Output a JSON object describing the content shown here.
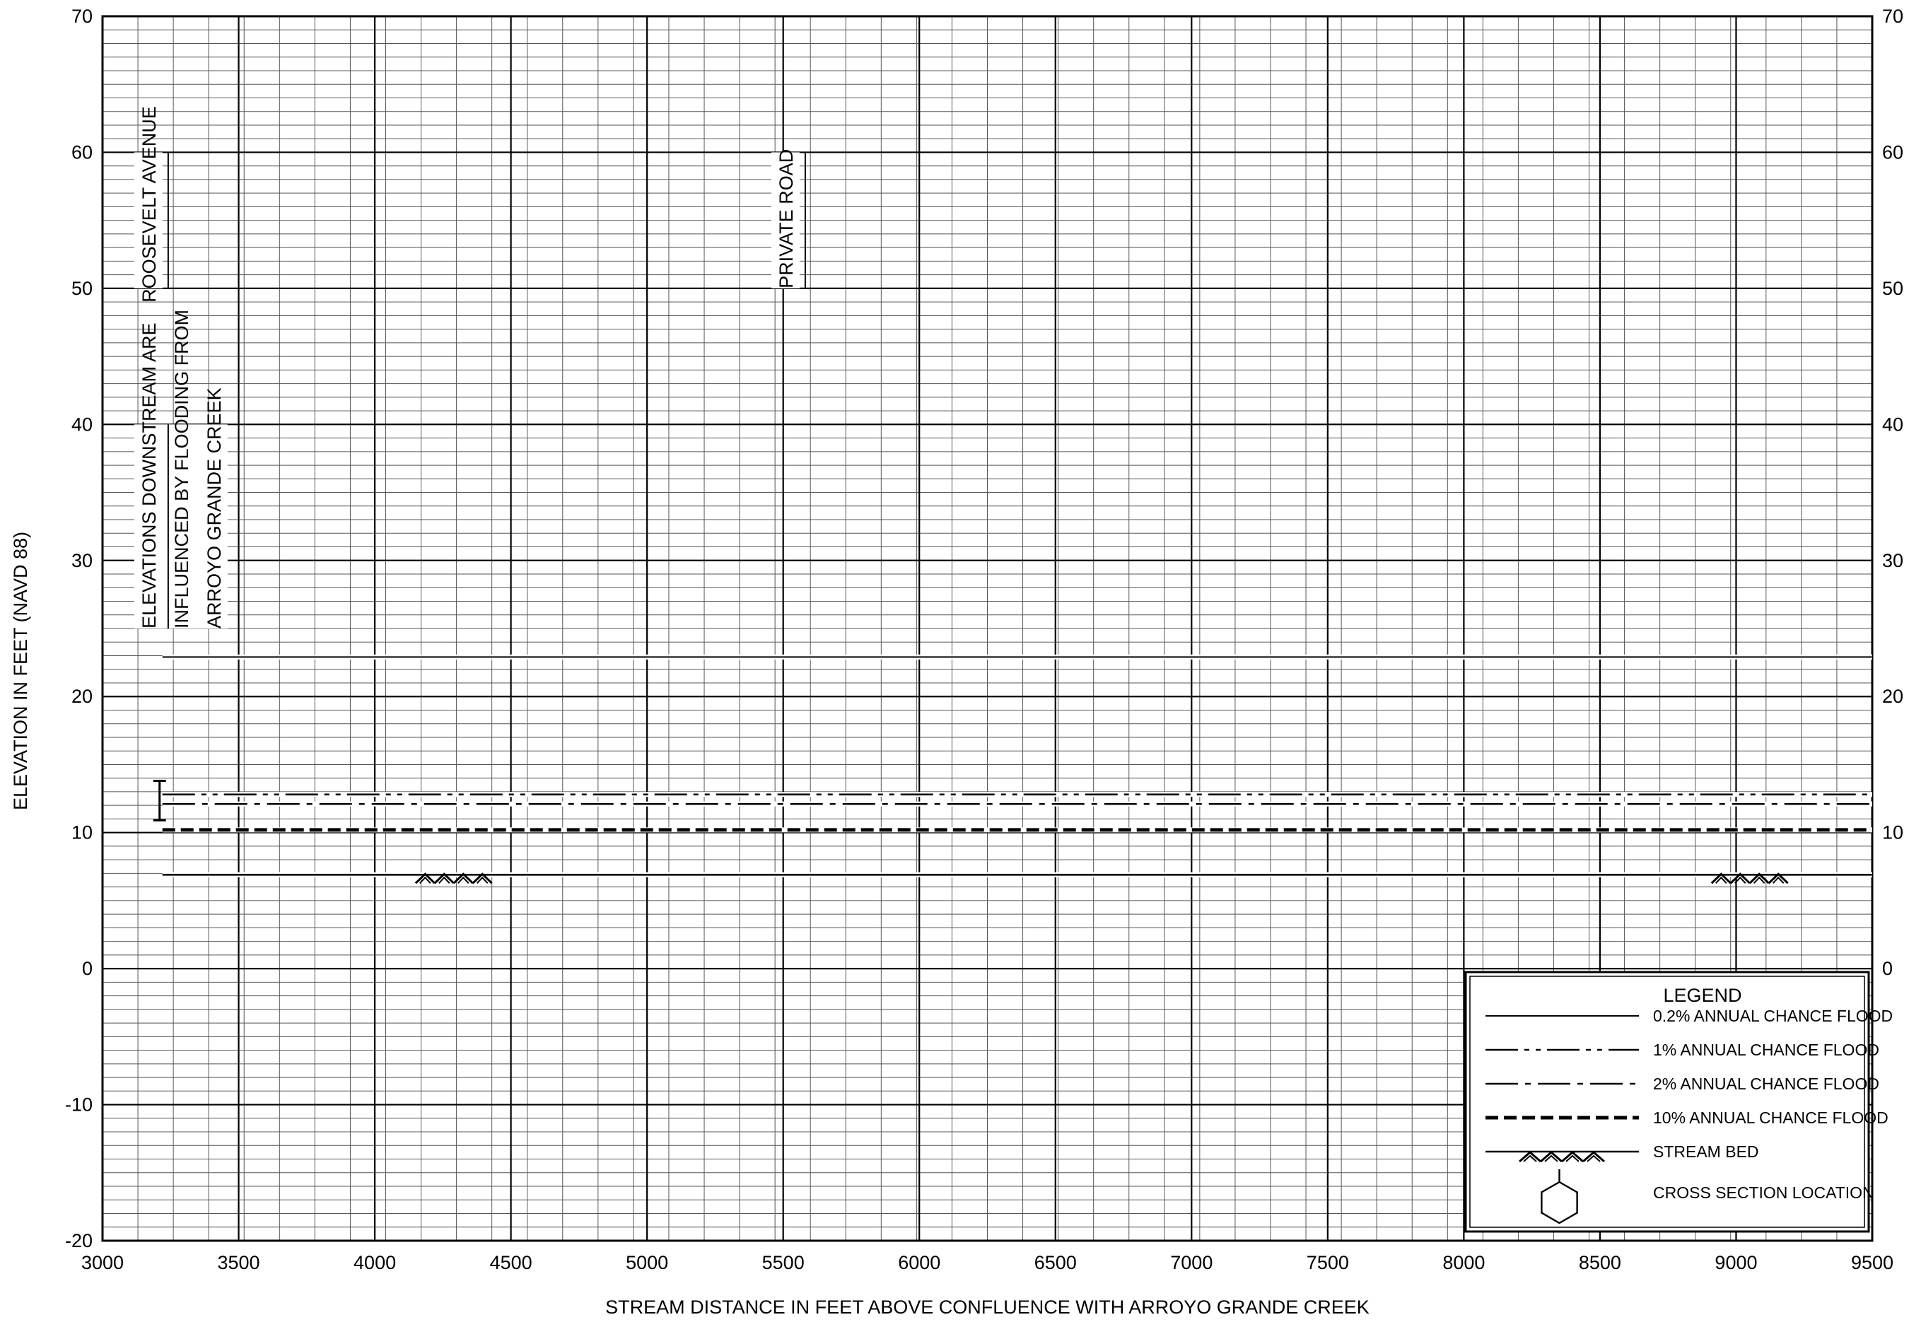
{
  "chart_data": {
    "type": "line",
    "xlabel": "STREAM DISTANCE IN FEET ABOVE CONFLUENCE WITH ARROYO GRANDE CREEK",
    "ylabel": "ELEVATION IN FEET (NAVD 88)",
    "xlim": [
      3000,
      9500
    ],
    "ylim": [
      -20,
      70
    ],
    "x_ticks": [
      3000,
      3500,
      4000,
      4500,
      5000,
      5500,
      6000,
      6500,
      7000,
      7500,
      8000,
      8500,
      9000,
      9500
    ],
    "y_ticks": [
      -20,
      -10,
      0,
      10,
      20,
      30,
      40,
      50,
      60,
      70
    ],
    "y_ticks_right": [
      "",
      "",
      "0",
      "10",
      "20",
      "30",
      "40",
      "50",
      "60",
      "70"
    ],
    "grid": true,
    "series": [
      {
        "name": "0.2% ANNUAL CHANCE FLOOD",
        "style": "solid-thin",
        "x": [
          3220,
          9500
        ],
        "y": [
          22.9,
          22.9
        ]
      },
      {
        "name": "1% ANNUAL CHANCE FLOOD",
        "style": "dash-dot-dot",
        "x": [
          3220,
          9500
        ],
        "y": [
          12.8,
          12.8
        ]
      },
      {
        "name": "2% ANNUAL CHANCE FLOOD",
        "style": "dash-dot",
        "x": [
          3220,
          9500
        ],
        "y": [
          12.1,
          12.1
        ]
      },
      {
        "name": "10% ANNUAL CHANCE FLOOD",
        "style": "dashed-thick",
        "x": [
          3220,
          9500
        ],
        "y": [
          10.2,
          10.2
        ]
      },
      {
        "name": "STREAM BED",
        "style": "solid",
        "x": [
          3220,
          9500
        ],
        "y": [
          6.9,
          6.9
        ]
      }
    ],
    "stream_bed_hatches": [
      {
        "x_from": 4150,
        "x_to": 4430,
        "y": 6.9
      },
      {
        "x_from": 8910,
        "x_to": 9190,
        "y": 6.9
      }
    ],
    "annotations": [
      {
        "lines": [
          "ROOSEVELT AVENUE"
        ],
        "x": 3210,
        "y_from": 50,
        "y_to": 60
      },
      {
        "lines": [
          "PRIVATE ROAD"
        ],
        "x": 5550,
        "y_from": 50,
        "y_to": 60
      },
      {
        "lines": [
          "ELEVATIONS DOWNSTREAM ARE",
          "INFLUENCED BY FLOODING FROM",
          "ARROYO GRANDE CREEK"
        ],
        "x": 3210,
        "y_from": 25,
        "y_to": 40
      }
    ],
    "legend": {
      "title": "LEGEND",
      "position": "bottom-right",
      "items": [
        {
          "label": "0.2% ANNUAL CHANCE FLOOD",
          "symbol": "solid-thin"
        },
        {
          "label": "1% ANNUAL CHANCE FLOOD",
          "symbol": "dash-dot-dot"
        },
        {
          "label": "2% ANNUAL CHANCE FLOOD",
          "symbol": "dash-dot"
        },
        {
          "label": "10% ANNUAL CHANCE FLOOD",
          "symbol": "dashed-thick"
        },
        {
          "label": "STREAM BED",
          "symbol": "stream-bed"
        },
        {
          "label": "CROSS SECTION LOCATION",
          "symbol": "hexagon"
        }
      ]
    }
  }
}
